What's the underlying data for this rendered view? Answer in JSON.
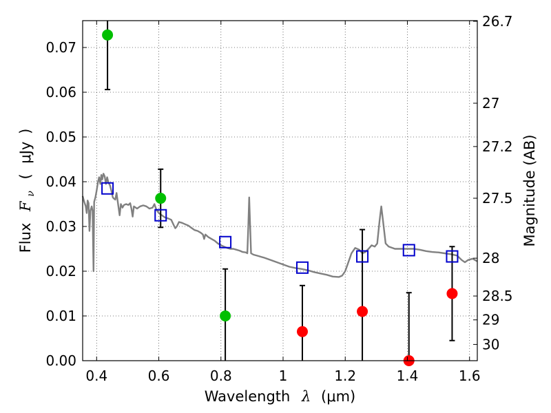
{
  "chart_data": {
    "type": "scatter",
    "xlabel": {
      "text": "Wavelength",
      "symbol": "λ",
      "unit": "(μm)"
    },
    "ylabel": {
      "text": "Flux",
      "symbol": "F",
      "symbol_sub": "ν",
      "unit_open": "(",
      "unit": "μJy",
      "unit_close": ")"
    },
    "y2label": "Magnitude (AB)",
    "xlim": [
      0.355,
      1.625
    ],
    "ylim": [
      0.0,
      0.076
    ],
    "x_ticks": [
      {
        "value": 0.4,
        "label": "0.4"
      },
      {
        "value": 0.6,
        "label": "0.6"
      },
      {
        "value": 0.8,
        "label": "0.8"
      },
      {
        "value": 1.0,
        "label": "1"
      },
      {
        "value": 1.2,
        "label": "1.2"
      },
      {
        "value": 1.4,
        "label": "1.4"
      },
      {
        "value": 1.6,
        "label": "1.6"
      }
    ],
    "y_ticks": [
      {
        "value": 0.0,
        "label": "0.00"
      },
      {
        "value": 0.01,
        "label": "0.01"
      },
      {
        "value": 0.02,
        "label": "0.02"
      },
      {
        "value": 0.03,
        "label": "0.03"
      },
      {
        "value": 0.04,
        "label": "0.04"
      },
      {
        "value": 0.05,
        "label": "0.05"
      },
      {
        "value": 0.06,
        "label": "0.06"
      },
      {
        "value": 0.07,
        "label": "0.07"
      }
    ],
    "y2_ticks": [
      {
        "value": 26.7,
        "label": "26.7"
      },
      {
        "value": 27.0,
        "label": "27"
      },
      {
        "value": 27.2,
        "label": "27.2"
      },
      {
        "value": 27.5,
        "label": "27.5"
      },
      {
        "value": 28.0,
        "label": "28"
      },
      {
        "value": 28.5,
        "label": "28.5"
      },
      {
        "value": 29.0,
        "label": "29"
      },
      {
        "value": 30.0,
        "label": "30"
      }
    ],
    "grid": true,
    "colors": {
      "detection": "#00bf00",
      "upper_limit": "#ff0000",
      "model_band": "#0000cc",
      "template": "#808080",
      "errorbar": "#000000"
    },
    "series": [
      {
        "type": "errorbar",
        "color": "#00bf00",
        "points": [
          {
            "x": 0.435,
            "y": 0.0728,
            "err": 0.0122
          },
          {
            "x": 0.606,
            "y": 0.0363,
            "err": 0.0065
          },
          {
            "x": 0.814,
            "y": 0.01,
            "err": 0.0105
          }
        ]
      },
      {
        "type": "errorbar",
        "color": "#ff0000",
        "points": [
          {
            "x": 1.062,
            "y": 0.0065,
            "err": 0.0103
          },
          {
            "x": 1.255,
            "y": 0.011,
            "err": 0.0183
          },
          {
            "x": 1.405,
            "y": 0.0,
            "err": 0.0152
          },
          {
            "x": 1.544,
            "y": 0.015,
            "err": 0.0105
          }
        ]
      },
      {
        "type": "scatter-square",
        "color": "#0000cc",
        "points": [
          {
            "x": 0.435,
            "y": 0.0385
          },
          {
            "x": 0.606,
            "y": 0.0325
          },
          {
            "x": 0.814,
            "y": 0.0265
          },
          {
            "x": 1.062,
            "y": 0.0208
          },
          {
            "x": 1.255,
            "y": 0.0233
          },
          {
            "x": 1.405,
            "y": 0.0247
          },
          {
            "x": 1.544,
            "y": 0.0233
          }
        ]
      },
      {
        "type": "line",
        "color": "#808080",
        "points": [
          [
            0.355,
            0.0368
          ],
          [
            0.36,
            0.0355
          ],
          [
            0.365,
            0.0345
          ],
          [
            0.368,
            0.033
          ],
          [
            0.371,
            0.0358
          ],
          [
            0.374,
            0.0352
          ],
          [
            0.377,
            0.029
          ],
          [
            0.38,
            0.0335
          ],
          [
            0.384,
            0.0345
          ],
          [
            0.387,
            0.0335
          ],
          [
            0.39,
            0.02
          ],
          [
            0.392,
            0.0355
          ],
          [
            0.396,
            0.0365
          ],
          [
            0.4,
            0.038
          ],
          [
            0.404,
            0.0398
          ],
          [
            0.408,
            0.041
          ],
          [
            0.412,
            0.0395
          ],
          [
            0.415,
            0.0415
          ],
          [
            0.418,
            0.0405
          ],
          [
            0.422,
            0.0418
          ],
          [
            0.426,
            0.0412
          ],
          [
            0.43,
            0.0395
          ],
          [
            0.434,
            0.041
          ],
          [
            0.438,
            0.0398
          ],
          [
            0.443,
            0.0392
          ],
          [
            0.448,
            0.0378
          ],
          [
            0.452,
            0.0365
          ],
          [
            0.456,
            0.0362
          ],
          [
            0.46,
            0.036
          ],
          [
            0.464,
            0.0375
          ],
          [
            0.47,
            0.0345
          ],
          [
            0.474,
            0.0325
          ],
          [
            0.478,
            0.035
          ],
          [
            0.483,
            0.0342
          ],
          [
            0.488,
            0.0348
          ],
          [
            0.495,
            0.035
          ],
          [
            0.502,
            0.0348
          ],
          [
            0.508,
            0.0352
          ],
          [
            0.512,
            0.034
          ],
          [
            0.516,
            0.0322
          ],
          [
            0.52,
            0.0345
          ],
          [
            0.53,
            0.034
          ],
          [
            0.54,
            0.0345
          ],
          [
            0.55,
            0.0347
          ],
          [
            0.56,
            0.0345
          ],
          [
            0.57,
            0.034
          ],
          [
            0.58,
            0.0342
          ],
          [
            0.586,
            0.035
          ],
          [
            0.592,
            0.0338
          ],
          [
            0.6,
            0.033
          ],
          [
            0.61,
            0.0325
          ],
          [
            0.62,
            0.032
          ],
          [
            0.63,
            0.0318
          ],
          [
            0.64,
            0.0315
          ],
          [
            0.648,
            0.0303
          ],
          [
            0.653,
            0.0296
          ],
          [
            0.658,
            0.03
          ],
          [
            0.665,
            0.031
          ],
          [
            0.675,
            0.0308
          ],
          [
            0.685,
            0.0305
          ],
          [
            0.695,
            0.0302
          ],
          [
            0.705,
            0.0297
          ],
          [
            0.715,
            0.0292
          ],
          [
            0.725,
            0.029
          ],
          [
            0.735,
            0.0286
          ],
          [
            0.742,
            0.0282
          ],
          [
            0.746,
            0.0272
          ],
          [
            0.75,
            0.0282
          ],
          [
            0.76,
            0.0276
          ],
          [
            0.77,
            0.0272
          ],
          [
            0.78,
            0.0268
          ],
          [
            0.79,
            0.0262
          ],
          [
            0.8,
            0.0258
          ],
          [
            0.81,
            0.0255
          ],
          [
            0.82,
            0.0252
          ],
          [
            0.83,
            0.025
          ],
          [
            0.84,
            0.025
          ],
          [
            0.85,
            0.0248
          ],
          [
            0.86,
            0.0246
          ],
          [
            0.87,
            0.0243
          ],
          [
            0.88,
            0.0242
          ],
          [
            0.885,
            0.024
          ],
          [
            0.888,
            0.03
          ],
          [
            0.891,
            0.0365
          ],
          [
            0.894,
            0.03
          ],
          [
            0.897,
            0.024
          ],
          [
            0.905,
            0.0237
          ],
          [
            0.92,
            0.0234
          ],
          [
            0.94,
            0.023
          ],
          [
            0.96,
            0.0225
          ],
          [
            0.98,
            0.022
          ],
          [
            1.0,
            0.0215
          ],
          [
            1.02,
            0.021
          ],
          [
            1.04,
            0.0207
          ],
          [
            1.06,
            0.0205
          ],
          [
            1.08,
            0.0202
          ],
          [
            1.1,
            0.0198
          ],
          [
            1.12,
            0.0195
          ],
          [
            1.14,
            0.0192
          ],
          [
            1.16,
            0.0188
          ],
          [
            1.18,
            0.0187
          ],
          [
            1.19,
            0.019
          ],
          [
            1.2,
            0.02
          ],
          [
            1.21,
            0.022
          ],
          [
            1.22,
            0.024
          ],
          [
            1.232,
            0.0252
          ],
          [
            1.245,
            0.0248
          ],
          [
            1.255,
            0.024
          ],
          [
            1.265,
            0.0243
          ],
          [
            1.275,
            0.025
          ],
          [
            1.285,
            0.0258
          ],
          [
            1.295,
            0.0255
          ],
          [
            1.303,
            0.0262
          ],
          [
            1.31,
            0.031
          ],
          [
            1.316,
            0.0345
          ],
          [
            1.322,
            0.031
          ],
          [
            1.33,
            0.0262
          ],
          [
            1.34,
            0.0255
          ],
          [
            1.36,
            0.025
          ],
          [
            1.38,
            0.025
          ],
          [
            1.4,
            0.025
          ],
          [
            1.42,
            0.025
          ],
          [
            1.44,
            0.0248
          ],
          [
            1.46,
            0.0245
          ],
          [
            1.48,
            0.0243
          ],
          [
            1.5,
            0.0242
          ],
          [
            1.52,
            0.024
          ],
          [
            1.54,
            0.0238
          ],
          [
            1.56,
            0.0235
          ],
          [
            1.575,
            0.0225
          ],
          [
            1.585,
            0.022
          ],
          [
            1.595,
            0.0225
          ],
          [
            1.61,
            0.0228
          ],
          [
            1.625,
            0.0222
          ]
        ]
      }
    ]
  }
}
